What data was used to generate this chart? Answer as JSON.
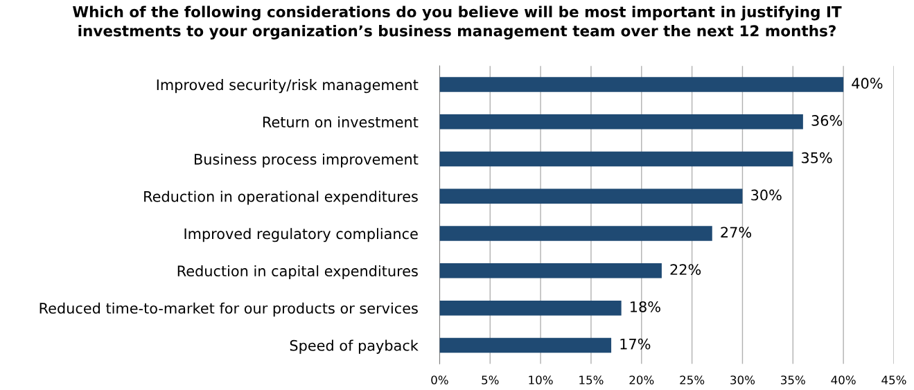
{
  "chart_data": {
    "type": "bar",
    "orientation": "horizontal",
    "title": "Which of the following considerations do you believe will be most important in justifying IT\ninvestments to your organization’s business management team over the next 12 months?",
    "categories": [
      "Improved security/risk management",
      "Return on investment",
      "Business process improvement",
      "Reduction in operational expenditures",
      "Improved regulatory compliance",
      "Reduction in capital expenditures",
      "Reduced time-to-market for our products or services",
      "Speed of payback"
    ],
    "values": [
      40,
      36,
      35,
      30,
      27,
      22,
      18,
      17
    ],
    "value_labels": [
      "40%",
      "36%",
      "35%",
      "30%",
      "27%",
      "22%",
      "18%",
      "17%"
    ],
    "color": "#1f4a73",
    "xlim": [
      0,
      45
    ],
    "xticks": [
      {
        "value": 0,
        "label": "0%"
      },
      {
        "value": 5,
        "label": "5%"
      },
      {
        "value": 10,
        "label": "10%"
      },
      {
        "value": 15,
        "label": "15%"
      },
      {
        "value": 20,
        "label": "20%"
      },
      {
        "value": 25,
        "label": "25%"
      },
      {
        "value": 30,
        "label": "30%"
      },
      {
        "value": 35,
        "label": "35%"
      },
      {
        "value": 40,
        "label": "40%"
      },
      {
        "value": 45,
        "label": "45%"
      }
    ],
    "grid": "x",
    "legend": false
  }
}
